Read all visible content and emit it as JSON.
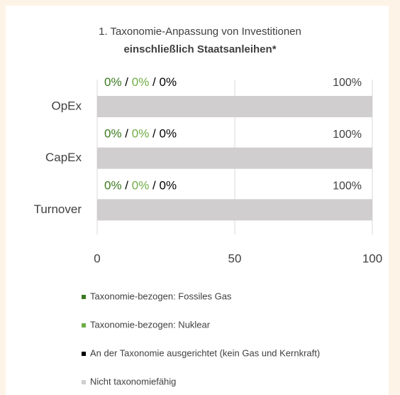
{
  "chart_data": {
    "type": "bar",
    "orientation": "horizontal",
    "stacked": true,
    "title": "1. Taxonomie-Anpassung von Investitionen",
    "subtitle": "einschließlich Staatsanleihen*",
    "categories": [
      "OpEx",
      "CapEx",
      "Turnover"
    ],
    "series": [
      {
        "name": "Taxonomie-bezogen: Fossiles Gas",
        "color": "#3b7a1f",
        "values": [
          0,
          0,
          0
        ],
        "value_labels": [
          "0%",
          "0%",
          "0%"
        ]
      },
      {
        "name": "Taxonomie-bezogen: Nuklear",
        "color": "#70ad47",
        "values": [
          0,
          0,
          0
        ],
        "value_labels": [
          "0%",
          "0%",
          "0%"
        ]
      },
      {
        "name": "An der Taxonomie ausgerichtet (kein Gas und Kernkraft)",
        "color": "#000000",
        "values": [
          0,
          0,
          0
        ],
        "value_labels": [
          "0%",
          "0%",
          "0%"
        ]
      },
      {
        "name": "Nicht taxonomiefähig",
        "color": "#d0cece",
        "values": [
          100,
          100,
          100
        ],
        "value_labels": [
          "100%",
          "100%",
          "100%"
        ]
      }
    ],
    "value_label_separator": "/",
    "xlim": [
      0,
      100
    ],
    "xticks": [
      0,
      50,
      100
    ],
    "grid": true,
    "legend": "bottom"
  }
}
